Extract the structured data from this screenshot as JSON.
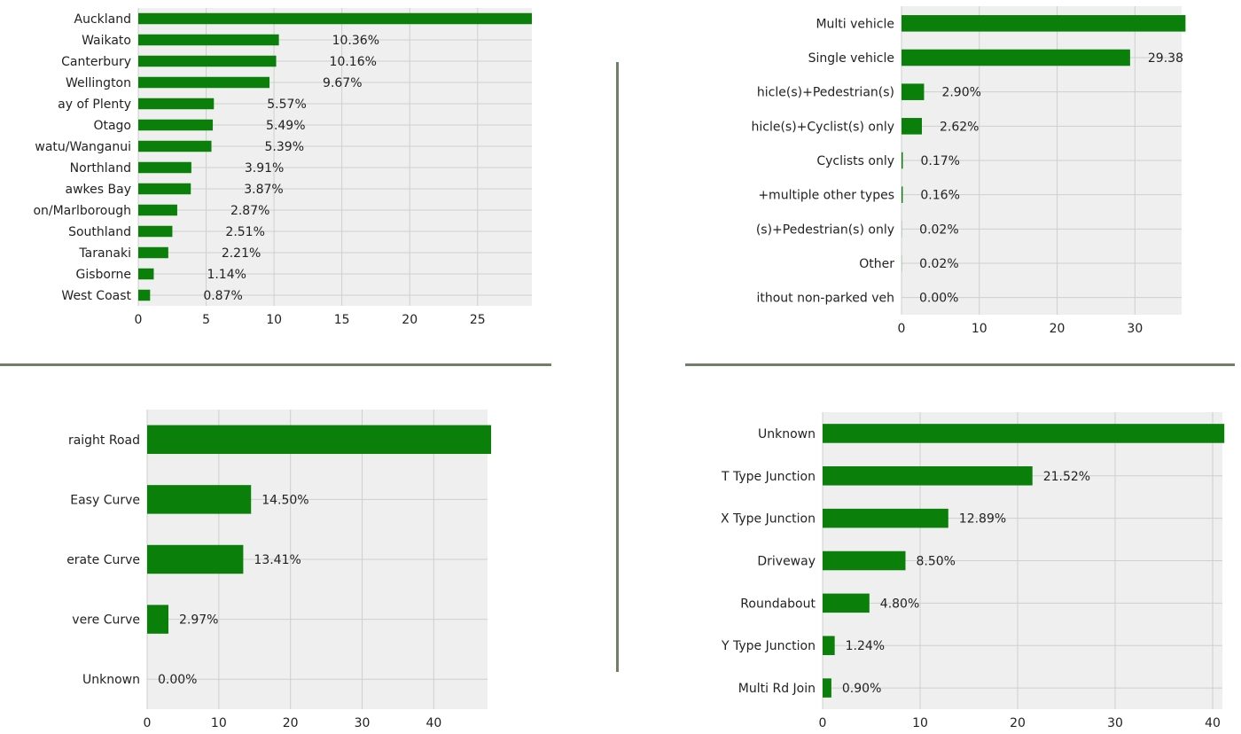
{
  "colors": {
    "bar": "#0a7f0a",
    "plot_bg": "#efefef",
    "grid": "#cfcfcf",
    "divider": "#6f7f6a",
    "text": "#222222"
  },
  "chart_data": [
    {
      "type": "bar",
      "orientation": "horizontal",
      "categories": [
        "Auckland",
        "Waikato",
        "Canterbury",
        "Wellington",
        "Bay of Plenty",
        "Otago",
        "Manawatu/Wanganui",
        "Northland",
        "Hawkes Bay",
        "Nelson/Marlborough",
        "Southland",
        "Taranaki",
        "Gisborne",
        "West Coast"
      ],
      "tick_labels": [
        "Auckland",
        "Waikato",
        "Canterbury",
        "Wellington",
        "ay of Plenty",
        "Otago",
        "watu/Wanganui",
        "Northland",
        "awkes Bay",
        "on/Marlborough",
        "Southland",
        "Taranaki",
        "Gisborne",
        "West Coast"
      ],
      "values": [
        29.0,
        10.36,
        10.16,
        9.67,
        5.57,
        5.49,
        5.39,
        3.91,
        3.87,
        2.87,
        2.51,
        2.21,
        1.14,
        0.87
      ],
      "data_labels": [
        "",
        "10.36%",
        "10.16%",
        "9.67%",
        "5.57%",
        "5.49%",
        "5.39%",
        "3.91%",
        "3.87%",
        "2.87%",
        "2.51%",
        "2.21%",
        "1.14%",
        "0.87%"
      ],
      "xlim": [
        0,
        29
      ],
      "xticks": [
        0,
        5,
        10,
        15,
        20,
        25
      ],
      "grid": true,
      "title": "",
      "xlabel": "",
      "ylabel": ""
    },
    {
      "type": "bar",
      "orientation": "horizontal",
      "categories": [
        "Multi vehicle",
        "Single vehicle",
        "Vehicle(s)+Pedestrian(s)",
        "Vehicle(s)+Cyclist(s) only",
        "Cyclists only",
        "+multiple other types",
        "(s)+Pedestrian(s) only",
        "Other",
        "Without non-parked veh"
      ],
      "tick_labels": [
        "Multi vehicle",
        "Single vehicle",
        "hicle(s)+Pedestrian(s)",
        "hicle(s)+Cyclist(s) only",
        "Cyclists only",
        "+multiple other types",
        "(s)+Pedestrian(s) only",
        "Other",
        "ithout non-parked veh"
      ],
      "values": [
        36.5,
        29.38,
        2.9,
        2.62,
        0.17,
        0.16,
        0.02,
        0.02,
        0.0
      ],
      "data_labels": [
        "",
        "29.38",
        "2.90%",
        "2.62%",
        "0.17%",
        "0.16%",
        "0.02%",
        "0.02%",
        "0.00%"
      ],
      "xlim": [
        0,
        36
      ],
      "xticks": [
        0,
        10,
        20,
        30
      ],
      "grid": true,
      "title": "",
      "xlabel": "",
      "ylabel": ""
    },
    {
      "type": "bar",
      "orientation": "horizontal",
      "categories": [
        "Straight Road",
        "Easy Curve",
        "Moderate Curve",
        "Severe Curve",
        "Unknown"
      ],
      "tick_labels": [
        "raight Road",
        "Easy Curve",
        "erate Curve",
        "vere Curve",
        "Unknown"
      ],
      "values": [
        48.0,
        14.5,
        13.41,
        2.97,
        0.0
      ],
      "data_labels": [
        "",
        "14.50%",
        "13.41%",
        "2.97%",
        "0.00%"
      ],
      "xlim": [
        0,
        47.5
      ],
      "xticks": [
        0,
        10,
        20,
        30,
        40
      ],
      "grid": true,
      "title": "",
      "xlabel": "",
      "ylabel": ""
    },
    {
      "type": "bar",
      "orientation": "horizontal",
      "categories": [
        "Unknown",
        "T Type Junction",
        "X Type Junction",
        "Driveway",
        "Roundabout",
        "Y Type Junction",
        "Multi Rd Join"
      ],
      "tick_labels": [
        "Unknown",
        "T Type Junction",
        "X Type Junction",
        "Driveway",
        "Roundabout",
        "Y Type Junction",
        "Multi Rd Join"
      ],
      "values": [
        41.2,
        21.52,
        12.89,
        8.5,
        4.8,
        1.24,
        0.9
      ],
      "data_labels": [
        "",
        "21.52%",
        "12.89%",
        "8.50%",
        "4.80%",
        "1.24%",
        "0.90%"
      ],
      "xlim": [
        0,
        41
      ],
      "xticks": [
        0,
        10,
        20,
        30,
        40
      ],
      "grid": true,
      "title": "",
      "xlabel": "",
      "ylabel": ""
    }
  ]
}
